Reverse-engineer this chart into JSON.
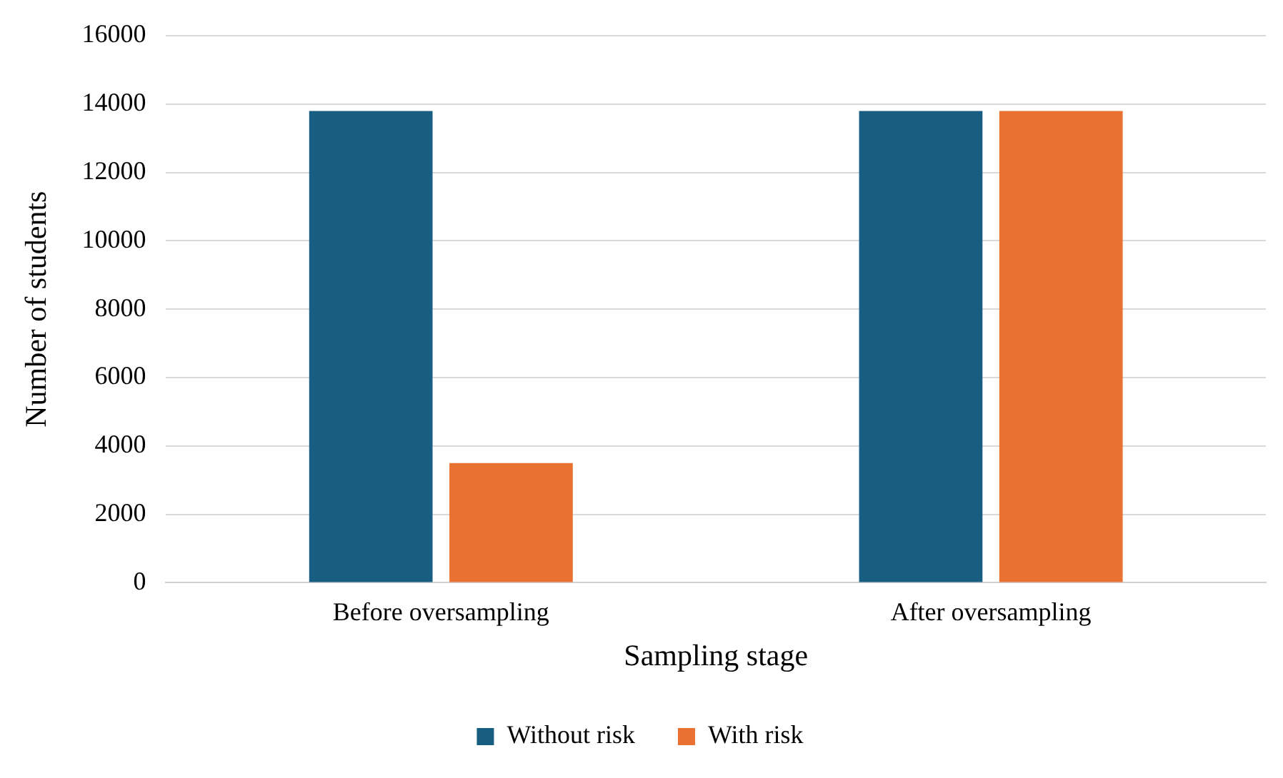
{
  "chart_data": {
    "type": "bar",
    "xlabel": "Sampling stage",
    "ylabel": "Number of students",
    "categories": [
      "Before oversampling",
      "After oversampling"
    ],
    "series": [
      {
        "name": "Without risk",
        "color": "#175e82",
        "values": [
          13800,
          13800
        ]
      },
      {
        "name": "With risk",
        "color": "#e97132",
        "values": [
          3500,
          13800
        ]
      }
    ],
    "ylim": [
      0,
      16000
    ],
    "yticks": [
      0,
      2000,
      4000,
      6000,
      8000,
      10000,
      12000,
      14000,
      16000
    ],
    "grid": "y",
    "legend": "bottom"
  }
}
